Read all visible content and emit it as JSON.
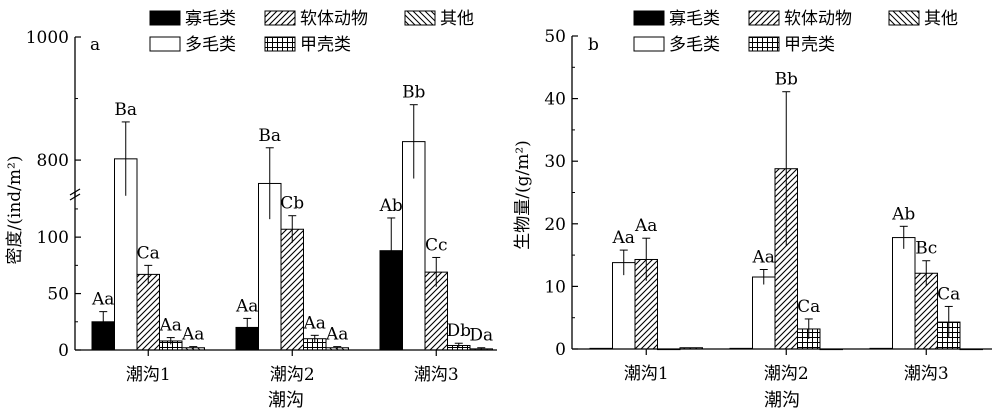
{
  "chart_data": [
    {
      "type": "bar",
      "panel_label": "a",
      "categories": [
        "潮沟1",
        "潮沟2",
        "潮沟3"
      ],
      "xlabel": "潮沟",
      "ylabel": "密度/(ind/m²)",
      "axis_break": true,
      "ylim_lower": [
        0,
        140
      ],
      "ylim_upper": [
        740,
        1000
      ],
      "lower_ticks": [
        "0",
        "50",
        "100"
      ],
      "upper_ticks": [
        "800",
        "1000"
      ],
      "series": [
        {
          "name": "寡毛类",
          "values": [
            25,
            20,
            88
          ],
          "errors": [
            9,
            8,
            29
          ],
          "labels": [
            "Aa",
            "Aa",
            "Ab"
          ]
        },
        {
          "name": "多毛类",
          "values": [
            802,
            762,
            830
          ],
          "errors": [
            60,
            58,
            60
          ],
          "labels": [
            "Ba",
            "Ba",
            "Bb"
          ]
        },
        {
          "name": "软体动物",
          "values": [
            67,
            107,
            69
          ],
          "errors": [
            8,
            12,
            13
          ],
          "labels": [
            "Ca",
            "Cb",
            "Cc"
          ]
        },
        {
          "name": "甲壳类",
          "values": [
            8,
            10,
            4
          ],
          "errors": [
            3,
            3,
            2
          ],
          "labels": [
            "Aa",
            "Aa",
            "Db"
          ]
        },
        {
          "name": "其他",
          "values": [
            2,
            2,
            1
          ],
          "errors": [
            1,
            1,
            1
          ],
          "labels": [
            "Aa",
            "Aa",
            "Da"
          ]
        }
      ]
    },
    {
      "type": "bar",
      "panel_label": "b",
      "categories": [
        "潮沟1",
        "潮沟2",
        "潮沟3"
      ],
      "xlabel": "潮沟",
      "ylabel": "生物量/(g/m²)",
      "ylim": [
        0,
        50
      ],
      "yticks": [
        "0",
        "10",
        "20",
        "30",
        "40",
        "50"
      ],
      "series": [
        {
          "name": "寡毛类",
          "values": [
            0.1,
            0.1,
            0.1
          ],
          "errors": [
            0,
            0,
            0
          ],
          "labels": [
            "",
            "",
            ""
          ]
        },
        {
          "name": "多毛类",
          "values": [
            13.8,
            11.5,
            17.8
          ],
          "errors": [
            2.0,
            1.2,
            1.8
          ],
          "labels": [
            "Aa",
            "Aa",
            "Ab"
          ]
        },
        {
          "name": "软体动物",
          "values": [
            14.3,
            28.8,
            12.1
          ],
          "errors": [
            3.4,
            12.3,
            2.0
          ],
          "labels": [
            "Aa",
            "Bb",
            "Bc"
          ]
        },
        {
          "name": "甲壳类",
          "values": [
            0,
            3.2,
            4.3
          ],
          "errors": [
            0,
            1.6,
            2.5
          ],
          "labels": [
            "",
            "Ca",
            "Ca"
          ]
        },
        {
          "name": "其他",
          "values": [
            0.2,
            0,
            0
          ],
          "errors": [
            0,
            0,
            0
          ],
          "labels": [
            "",
            "",
            ""
          ]
        }
      ]
    }
  ],
  "legend": {
    "entries": [
      "寡毛类",
      "软体动物",
      "其他",
      "多毛类",
      "甲壳类"
    ]
  }
}
